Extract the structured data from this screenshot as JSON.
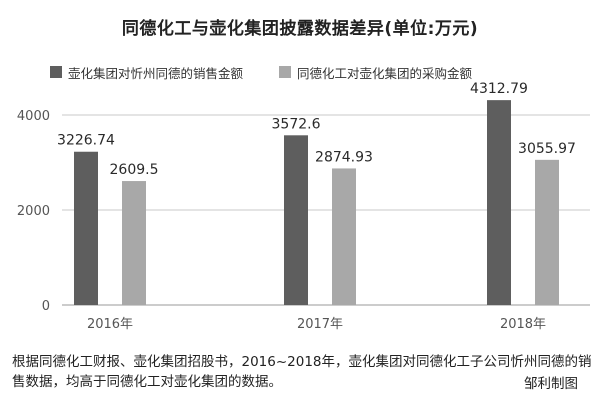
{
  "chart_data": {
    "type": "bar",
    "title": "同德化工与壶化集团披露数据差异(单位:万元)",
    "categories": [
      "2016年",
      "2017年",
      "2018年"
    ],
    "series": [
      {
        "name": "壶化集团对忻州同德的销售金额",
        "values": [
          3226.74,
          3572.6,
          4312.79
        ],
        "labels": [
          "3226.74",
          "3572.6",
          "4312.79"
        ],
        "color": "#5e5e5e"
      },
      {
        "name": "同德化工对壶化集团的采购金额",
        "values": [
          2609.5,
          2874.93,
          3055.97
        ],
        "labels": [
          "2609.5",
          "2874.93",
          "3055.97"
        ],
        "color": "#a8a8a8"
      }
    ],
    "yticks": [
      0,
      2000,
      4000
    ],
    "ylim": [
      0,
      4500
    ],
    "grid": true,
    "legend": "top-left"
  },
  "footnote": "根据同德化工财报、壶化集团招股书，2016~2018年，壶化集团对同德化工子公司忻州同德的销售数据，均高于同德化工对壶化集团的数据。",
  "credit": "邹利制图"
}
